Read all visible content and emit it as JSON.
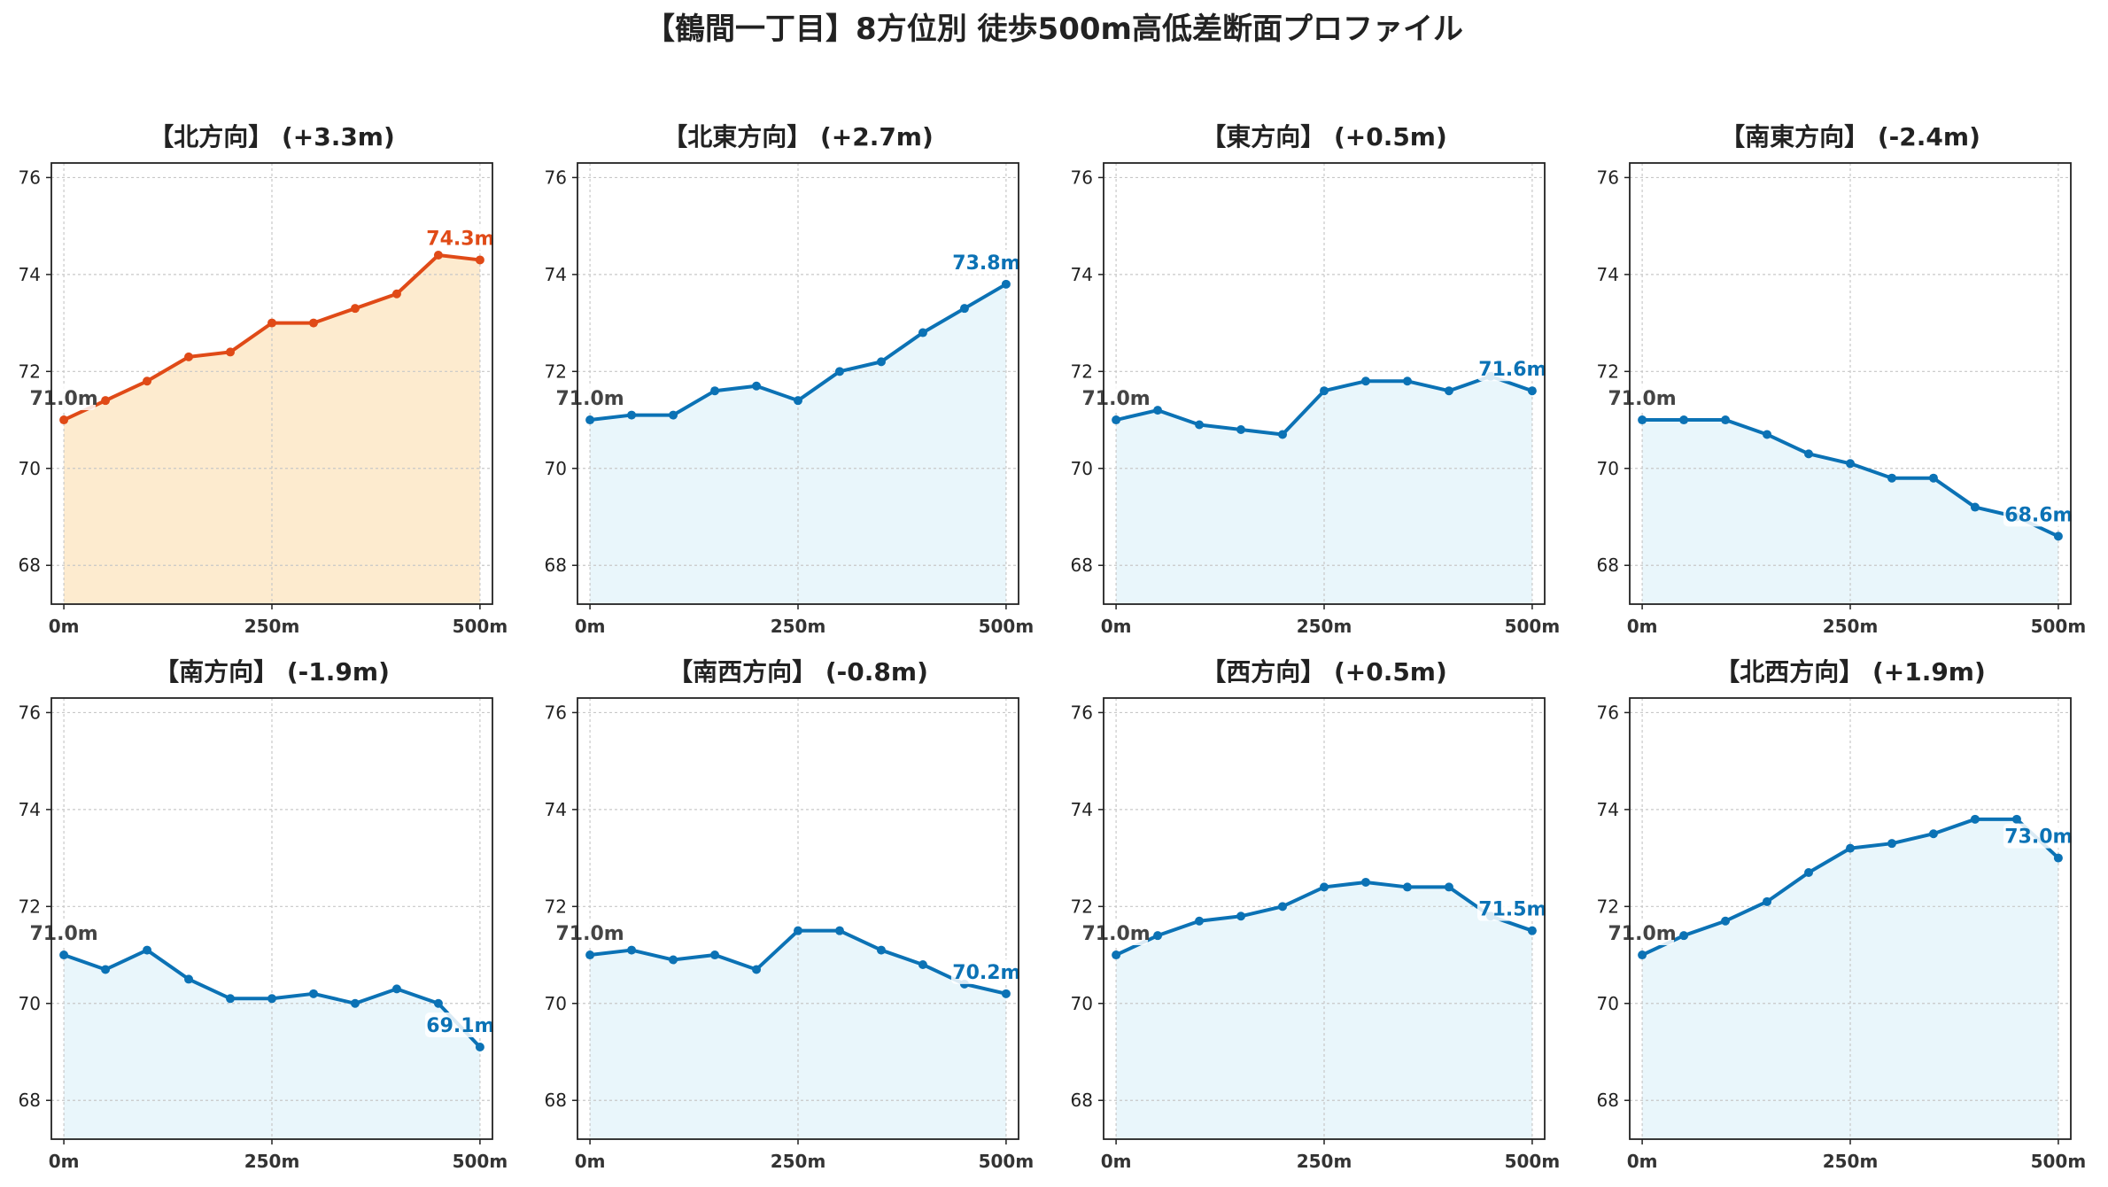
{
  "figure": {
    "title": "【鶴間一丁目】8方位別 徒歩500m高低差断面プロファイル"
  },
  "colors": {
    "up_line": "#e04a17",
    "up_fill": "#fdebcf",
    "normal_line": "#0b72b5",
    "normal_fill": "#e9f6fb",
    "grid": "#c8c8c8"
  },
  "chart_data": [
    {
      "type": "area",
      "title": "【北方向】 (+3.3m)",
      "x": [
        0,
        50,
        100,
        150,
        200,
        250,
        300,
        350,
        400,
        450,
        500
      ],
      "y": [
        71.0,
        71.4,
        71.8,
        72.3,
        72.4,
        73.0,
        73.0,
        73.3,
        73.6,
        74.4,
        74.3
      ],
      "start_label": "71.0m",
      "end_label": "74.3m",
      "highlight": true,
      "xticks": [
        "0m",
        "250m",
        "500m"
      ],
      "yticks": [
        "68",
        "70",
        "72",
        "74",
        "76"
      ],
      "ylim": [
        67.2,
        76.3
      ],
      "xlim": [
        -15,
        515
      ],
      "grid": true
    },
    {
      "type": "area",
      "title": "【北東方向】 (+2.7m)",
      "x": [
        0,
        50,
        100,
        150,
        200,
        250,
        300,
        350,
        400,
        450,
        500
      ],
      "y": [
        71.0,
        71.1,
        71.1,
        71.6,
        71.7,
        71.4,
        72.0,
        72.2,
        72.8,
        73.3,
        73.8
      ],
      "start_label": "71.0m",
      "end_label": "73.8m",
      "highlight": false,
      "xticks": [
        "0m",
        "250m",
        "500m"
      ],
      "yticks": [
        "68",
        "70",
        "72",
        "74",
        "76"
      ],
      "ylim": [
        67.2,
        76.3
      ],
      "xlim": [
        -15,
        515
      ],
      "grid": true
    },
    {
      "type": "area",
      "title": "【東方向】 (+0.5m)",
      "x": [
        0,
        50,
        100,
        150,
        200,
        250,
        300,
        350,
        400,
        450,
        500
      ],
      "y": [
        71.0,
        71.2,
        70.9,
        70.8,
        70.7,
        71.6,
        71.8,
        71.8,
        71.6,
        71.9,
        71.6
      ],
      "start_label": "71.0m",
      "end_label": "71.6m",
      "highlight": false,
      "xticks": [
        "0m",
        "250m",
        "500m"
      ],
      "yticks": [
        "68",
        "70",
        "72",
        "74",
        "76"
      ],
      "ylim": [
        67.2,
        76.3
      ],
      "xlim": [
        -15,
        515
      ],
      "grid": true
    },
    {
      "type": "area",
      "title": "【南東方向】 (-2.4m)",
      "x": [
        0,
        50,
        100,
        150,
        200,
        250,
        300,
        350,
        400,
        450,
        500
      ],
      "y": [
        71.0,
        71.0,
        71.0,
        70.7,
        70.3,
        70.1,
        69.8,
        69.8,
        69.2,
        69.0,
        68.6
      ],
      "start_label": "71.0m",
      "end_label": "68.6m",
      "highlight": false,
      "xticks": [
        "0m",
        "250m",
        "500m"
      ],
      "yticks": [
        "68",
        "70",
        "72",
        "74",
        "76"
      ],
      "ylim": [
        67.2,
        76.3
      ],
      "xlim": [
        -15,
        515
      ],
      "grid": true
    },
    {
      "type": "area",
      "title": "【南方向】 (-1.9m)",
      "x": [
        0,
        50,
        100,
        150,
        200,
        250,
        300,
        350,
        400,
        450,
        500
      ],
      "y": [
        71.0,
        70.7,
        71.1,
        70.5,
        70.1,
        70.1,
        70.2,
        70.0,
        70.3,
        70.0,
        69.1
      ],
      "start_label": "71.0m",
      "end_label": "69.1m",
      "highlight": false,
      "xticks": [
        "0m",
        "250m",
        "500m"
      ],
      "yticks": [
        "68",
        "70",
        "72",
        "74",
        "76"
      ],
      "ylim": [
        67.2,
        76.3
      ],
      "xlim": [
        -15,
        515
      ],
      "grid": true
    },
    {
      "type": "area",
      "title": "【南西方向】 (-0.8m)",
      "x": [
        0,
        50,
        100,
        150,
        200,
        250,
        300,
        350,
        400,
        450,
        500
      ],
      "y": [
        71.0,
        71.1,
        70.9,
        71.0,
        70.7,
        71.5,
        71.5,
        71.1,
        70.8,
        70.4,
        70.2
      ],
      "start_label": "71.0m",
      "end_label": "70.2m",
      "highlight": false,
      "xticks": [
        "0m",
        "250m",
        "500m"
      ],
      "yticks": [
        "68",
        "70",
        "72",
        "74",
        "76"
      ],
      "ylim": [
        67.2,
        76.3
      ],
      "xlim": [
        -15,
        515
      ],
      "grid": true
    },
    {
      "type": "area",
      "title": "【西方向】 (+0.5m)",
      "x": [
        0,
        50,
        100,
        150,
        200,
        250,
        300,
        350,
        400,
        450,
        500
      ],
      "y": [
        71.0,
        71.4,
        71.7,
        71.8,
        72.0,
        72.4,
        72.5,
        72.4,
        72.4,
        71.8,
        71.5
      ],
      "start_label": "71.0m",
      "end_label": "71.5m",
      "highlight": false,
      "xticks": [
        "0m",
        "250m",
        "500m"
      ],
      "yticks": [
        "68",
        "70",
        "72",
        "74",
        "76"
      ],
      "ylim": [
        67.2,
        76.3
      ],
      "xlim": [
        -15,
        515
      ],
      "grid": true
    },
    {
      "type": "area",
      "title": "【北西方向】 (+1.9m)",
      "x": [
        0,
        50,
        100,
        150,
        200,
        250,
        300,
        350,
        400,
        450,
        500
      ],
      "y": [
        71.0,
        71.4,
        71.7,
        72.1,
        72.7,
        73.2,
        73.3,
        73.5,
        73.8,
        73.8,
        73.0
      ],
      "start_label": "71.0m",
      "end_label": "73.0m",
      "highlight": false,
      "xticks": [
        "0m",
        "250m",
        "500m"
      ],
      "yticks": [
        "68",
        "70",
        "72",
        "74",
        "76"
      ],
      "ylim": [
        67.2,
        76.3
      ],
      "xlim": [
        -15,
        515
      ],
      "grid": true
    }
  ]
}
